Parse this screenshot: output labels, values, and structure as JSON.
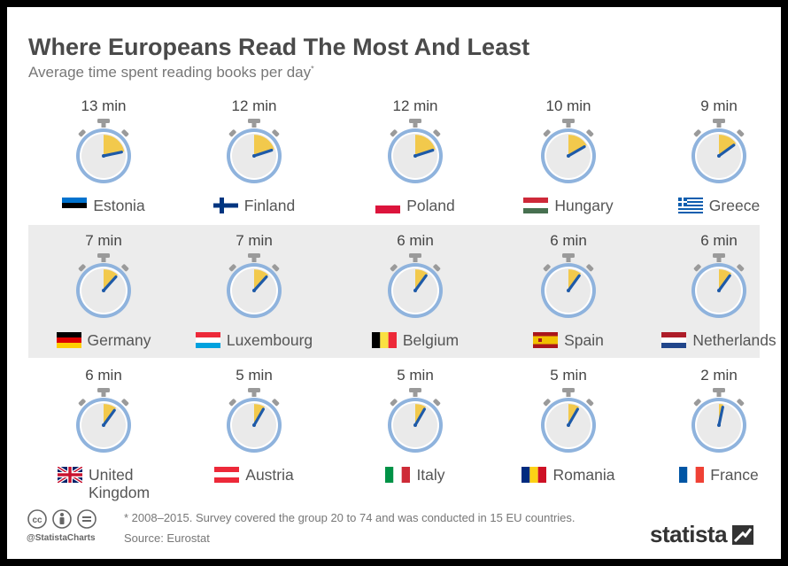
{
  "header": {
    "title": "Where Europeans Read The Most And Least",
    "subtitle": "Average time spent reading books per day",
    "subtitle_mark": "*"
  },
  "colors": {
    "ring": "#8fb3dd",
    "face": "#eaeaea",
    "wedge": "#f2c94c",
    "hand": "#1e5aa8",
    "knob": "#9a9a9a"
  },
  "chart_data": {
    "type": "table",
    "title": "Where Europeans Read The Most And Least",
    "subtitle": "Average time spent reading books per day*",
    "unit": "min",
    "items": [
      {
        "country": "Estonia",
        "minutes": 13,
        "label": "13 min",
        "flag": "estonia"
      },
      {
        "country": "Finland",
        "minutes": 12,
        "label": "12 min",
        "flag": "finland"
      },
      {
        "country": "Poland",
        "minutes": 12,
        "label": "12 min",
        "flag": "poland"
      },
      {
        "country": "Hungary",
        "minutes": 10,
        "label": "10 min",
        "flag": "hungary"
      },
      {
        "country": "Greece",
        "minutes": 9,
        "label": "9 min",
        "flag": "greece"
      },
      {
        "country": "Germany",
        "minutes": 7,
        "label": "7 min",
        "flag": "germany"
      },
      {
        "country": "Luxembourg",
        "minutes": 7,
        "label": "7 min",
        "flag": "luxembourg"
      },
      {
        "country": "Belgium",
        "minutes": 6,
        "label": "6 min",
        "flag": "belgium"
      },
      {
        "country": "Spain",
        "minutes": 6,
        "label": "6 min",
        "flag": "spain"
      },
      {
        "country": "Netherlands",
        "minutes": 6,
        "label": "6 min",
        "flag": "netherlands"
      },
      {
        "country": "United Kingdom",
        "minutes": 6,
        "label": "6 min",
        "flag": "united-kingdom"
      },
      {
        "country": "Austria",
        "minutes": 5,
        "label": "5 min",
        "flag": "austria"
      },
      {
        "country": "Italy",
        "minutes": 5,
        "label": "5 min",
        "flag": "italy"
      },
      {
        "country": "Romania",
        "minutes": 5,
        "label": "5 min",
        "flag": "romania"
      },
      {
        "country": "France",
        "minutes": 2,
        "label": "2 min",
        "flag": "france"
      }
    ]
  },
  "footer": {
    "handle": "@StatistaCharts",
    "note": "* 2008–2015. Survey covered the group 20 to 74 and was conducted in 15 EU countries.",
    "source": "Source: Eurostat",
    "logo": "statista"
  }
}
